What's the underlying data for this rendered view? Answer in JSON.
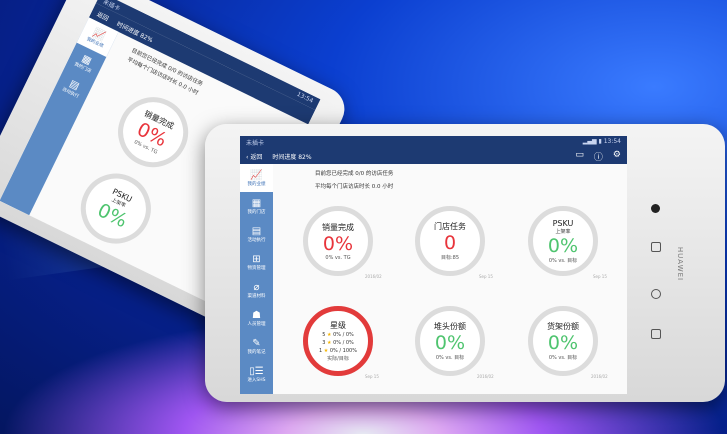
{
  "status": {
    "carrier": "未插卡",
    "time": "13:54"
  },
  "nav": {
    "back": "返回",
    "progress": "时间进度 82%"
  },
  "sidebar": {
    "items": [
      {
        "label": "我的业绩",
        "icon": "chart-icon"
      },
      {
        "label": "我的门店",
        "icon": "store-icon"
      },
      {
        "label": "活动执行",
        "icon": "clipboard-icon"
      },
      {
        "label": "物资管理",
        "icon": "grid-icon"
      },
      {
        "label": "渠道材料",
        "icon": "paperclip-icon"
      },
      {
        "label": "人员管理",
        "icon": "people-icon"
      },
      {
        "label": "我的笔记",
        "icon": "note-icon"
      },
      {
        "label": "进入SHS",
        "icon": "enter-icon"
      }
    ]
  },
  "messages": [
    "目前您已经完成 0/0 的访店任务",
    "平均每个门店访店时长 0.0 小时"
  ],
  "gauges": [
    {
      "title": "销量完成",
      "value": "0%",
      "foot": "0% vs. TG",
      "date": "2016/02",
      "color": "red"
    },
    {
      "title": "门店任务",
      "value": "0",
      "foot": "目标:85",
      "date": "Sep 15",
      "color": "red"
    },
    {
      "title": "PSKU",
      "sub": "上架率",
      "value": "0%",
      "foot": "0% vs. 目标",
      "date": "Sep 15",
      "color": "green"
    },
    {
      "title": "星级",
      "stars": [
        {
          "n": "5",
          "v": "0% / 0%"
        },
        {
          "n": "3",
          "v": "0% / 0%"
        },
        {
          "n": "1",
          "v": "0% / 100%"
        }
      ],
      "foot": "实际/目标",
      "date": "Sep 15",
      "ring": "red"
    },
    {
      "title": "堆头份额",
      "value": "0%",
      "foot": "0% vs. 目标",
      "date": "2016/02",
      "color": "green"
    },
    {
      "title": "货架份额",
      "value": "0%",
      "foot": "0% vs. 目标",
      "date": "2016/02",
      "color": "green"
    }
  ],
  "device": {
    "brand": "HUAWEI"
  },
  "colors": {
    "header": "#1d3a72",
    "sidebar": "#5b8ac4",
    "red": "#e8343b",
    "green": "#4fc46f"
  }
}
